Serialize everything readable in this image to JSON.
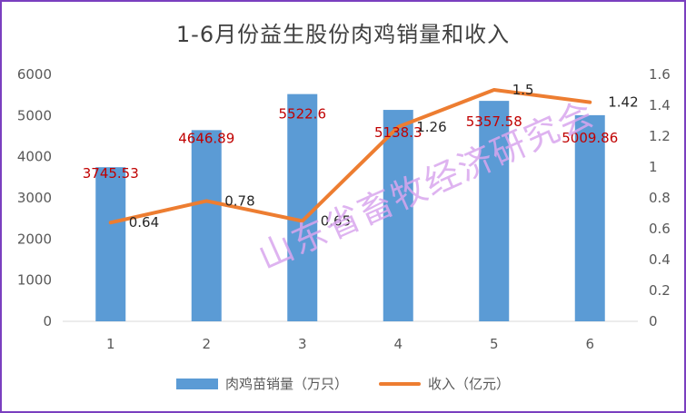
{
  "chart_data": {
    "type": "bar+line",
    "title": "1-6月份益生股份肉鸡销量和收入",
    "categories": [
      "1",
      "2",
      "3",
      "4",
      "5",
      "6"
    ],
    "series": [
      {
        "name": "肉鸡苗销量（万只）",
        "type": "bar",
        "axis": "left",
        "color": "#5b9bd5",
        "values": [
          3745.53,
          4646.89,
          5522.6,
          5138.3,
          5357.58,
          5009.86
        ],
        "labels": [
          "3745.53",
          "4646.89",
          "5522.6",
          "5138.3",
          "5357.58",
          "5009.86"
        ]
      },
      {
        "name": "收入（亿元）",
        "type": "line",
        "axis": "right",
        "color": "#ed7d31",
        "values": [
          0.64,
          0.78,
          0.65,
          1.26,
          1.5,
          1.42
        ],
        "labels": [
          "0.64",
          "0.78",
          "0.65",
          "1.26",
          "1.5",
          "1.42"
        ]
      }
    ],
    "y_left": {
      "min": 0,
      "max": 6000,
      "ticks": [
        "0",
        "1000",
        "2000",
        "3000",
        "4000",
        "5000",
        "6000"
      ]
    },
    "y_right": {
      "min": 0,
      "max": 1.6,
      "ticks": [
        "0",
        "0.2",
        "0.4",
        "0.6",
        "0.8",
        "1",
        "1.2",
        "1.4",
        "1.6"
      ]
    },
    "grid": false,
    "legend_position": "bottom"
  },
  "watermark": "山东省畜牧经济研究会"
}
